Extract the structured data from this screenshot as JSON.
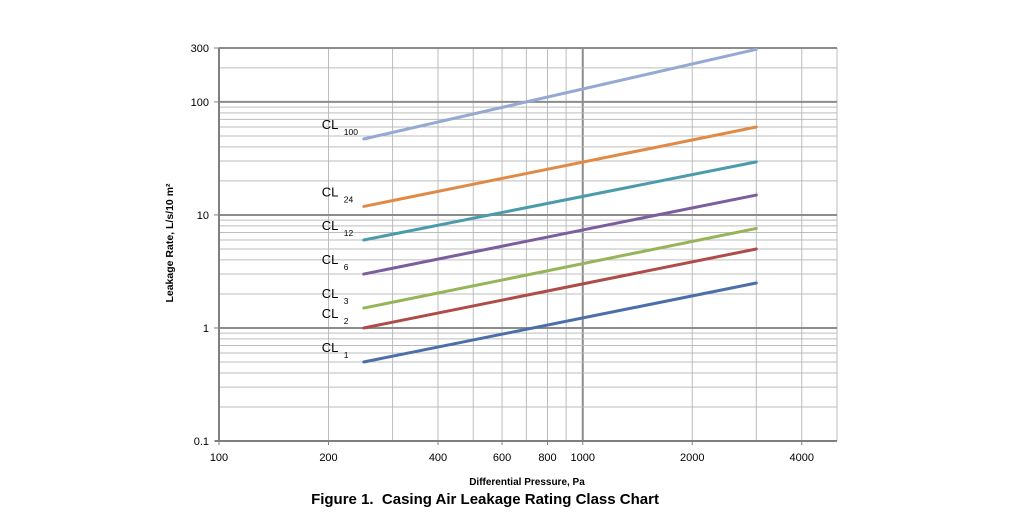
{
  "chart_data": {
    "type": "line",
    "caption": "Figure 1.  Casing Air Leakage Rating Class Chart",
    "xlabel": "Differential Pressure, Pa",
    "ylabel": "Leakage Rate, L/s/10 m²",
    "x_scale": "log",
    "y_scale": "log",
    "xlim": [
      100,
      5000
    ],
    "ylim": [
      0.1,
      300
    ],
    "grid": true,
    "x_ticks": [
      100,
      200,
      400,
      600,
      800,
      1000,
      2000,
      4000
    ],
    "x_tick_labels": [
      "100",
      "200",
      "400",
      "600",
      "800",
      "1000",
      "2000",
      "4000"
    ],
    "y_ticks": [
      0.1,
      1,
      10,
      100,
      300
    ],
    "y_tick_labels": [
      "0.1",
      "1",
      "10",
      "100",
      "300"
    ],
    "series": [
      {
        "name": "CL 100",
        "label": "CL",
        "subscript": "100",
        "color": "#95a9d3",
        "x": [
          250,
          3000
        ],
        "y": [
          47,
          292
        ]
      },
      {
        "name": "CL 24",
        "label": "CL",
        "subscript": "24",
        "color": "#e08a48",
        "x": [
          250,
          3000
        ],
        "y": [
          11.9,
          60
        ]
      },
      {
        "name": "CL 12",
        "label": "CL",
        "subscript": "12",
        "color": "#4b9cab",
        "x": [
          250,
          3000
        ],
        "y": [
          6,
          29.5
        ]
      },
      {
        "name": "CL 6",
        "label": "CL",
        "subscript": "6",
        "color": "#7a5e9e",
        "x": [
          250,
          3000
        ],
        "y": [
          3,
          15
        ]
      },
      {
        "name": "CL 3",
        "label": "CL",
        "subscript": "3",
        "color": "#96b458",
        "x": [
          250,
          3000
        ],
        "y": [
          1.5,
          7.6
        ]
      },
      {
        "name": "CL 2",
        "label": "CL",
        "subscript": "2",
        "color": "#b04c47",
        "x": [
          250,
          3000
        ],
        "y": [
          1,
          5
        ]
      },
      {
        "name": "CL 1",
        "label": "CL",
        "subscript": "1",
        "color": "#4b6fa8",
        "x": [
          250,
          3000
        ],
        "y": [
          0.5,
          2.5
        ]
      }
    ]
  }
}
